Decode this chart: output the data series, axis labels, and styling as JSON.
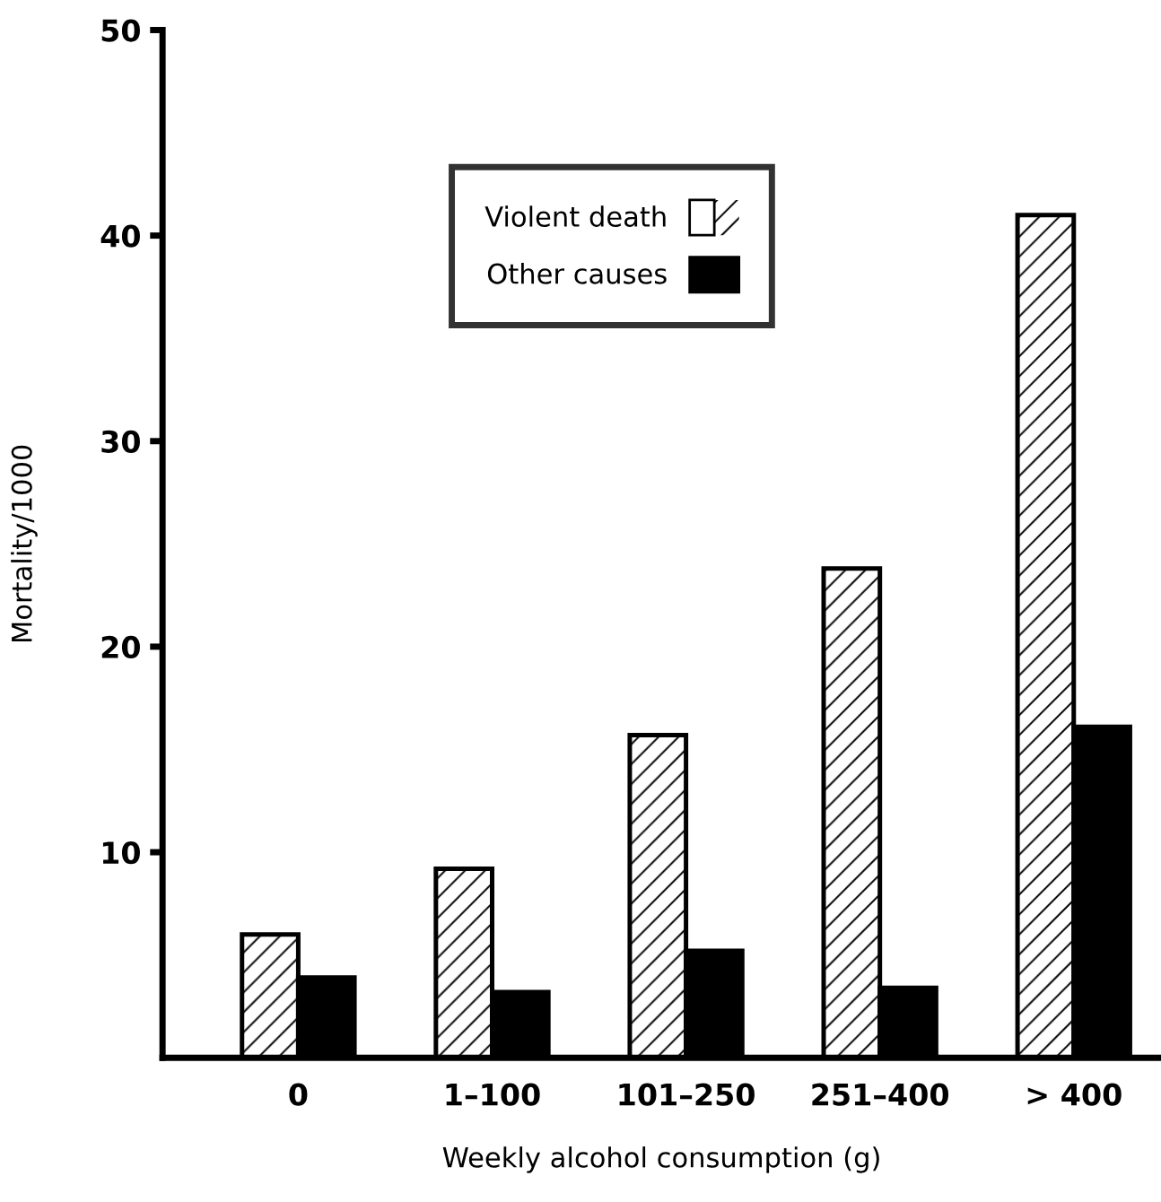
{
  "chart_data": {
    "type": "bar",
    "xlabel": "Weekly alcohol consumption (g)",
    "ylabel": "Mortality/1000",
    "categories": [
      "0",
      "1–100",
      "101–250",
      "251–400",
      "> 400"
    ],
    "series": [
      {
        "name": "Violent death",
        "color": "#ffffff",
        "values": [
          6.0,
          9.2,
          15.7,
          23.8,
          41
        ]
      },
      {
        "name": "Other causes",
        "color": "#000000",
        "values": [
          3.9,
          3.2,
          5.2,
          3.4,
          16.1
        ]
      }
    ],
    "ylim": [
      0,
      50
    ],
    "yticks": [
      10,
      20,
      30,
      40,
      50
    ],
    "grid": false,
    "legend": "top"
  }
}
